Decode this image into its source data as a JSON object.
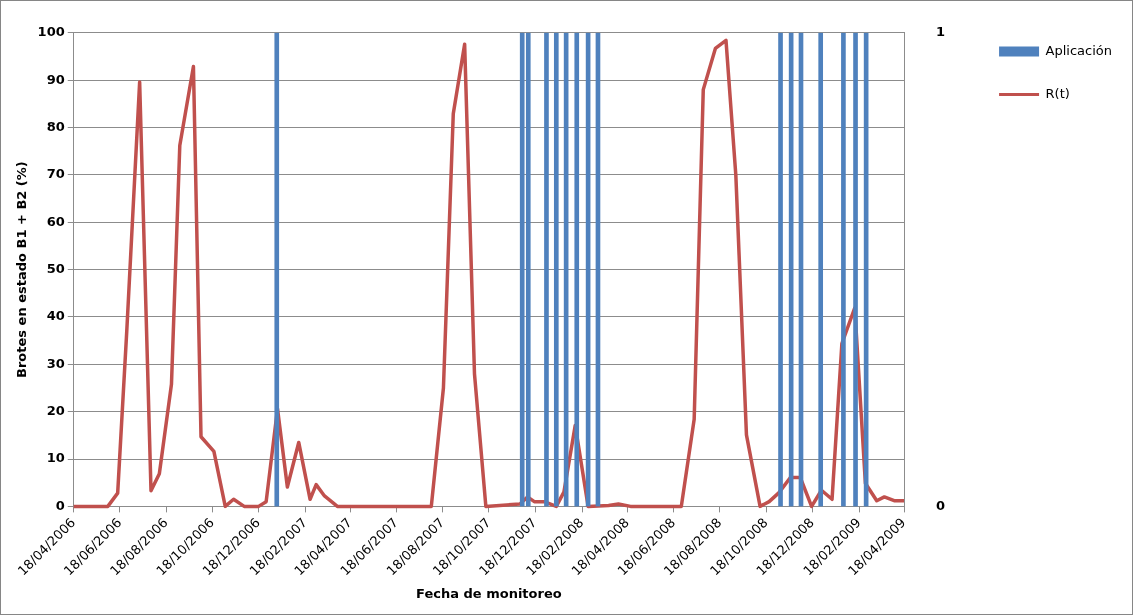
{
  "chart_data": {
    "type": "line",
    "xlabel": "Fecha de monitoreo",
    "ylabel": "Brotes en estado B1 + B2 (%)",
    "grid": "y",
    "legend": "right",
    "marker": "none",
    "xlim": [
      "2006-04-18",
      "2009-04-18"
    ],
    "xticks": [
      {
        "value": "2006-04-18",
        "label": "18/04/2006"
      },
      {
        "value": "2006-06-18",
        "label": "18/06/2006"
      },
      {
        "value": "2006-08-18",
        "label": "18/08/2006"
      },
      {
        "value": "2006-10-18",
        "label": "18/10/2006"
      },
      {
        "value": "2006-12-18",
        "label": "18/12/2006"
      },
      {
        "value": "2007-02-18",
        "label": "18/02/2007"
      },
      {
        "value": "2007-04-18",
        "label": "18/04/2007"
      },
      {
        "value": "2007-06-18",
        "label": "18/06/2007"
      },
      {
        "value": "2007-08-18",
        "label": "18/08/2007"
      },
      {
        "value": "2007-10-18",
        "label": "18/10/2007"
      },
      {
        "value": "2007-12-18",
        "label": "18/12/2007"
      },
      {
        "value": "2008-02-18",
        "label": "18/02/2008"
      },
      {
        "value": "2008-04-18",
        "label": "18/04/2008"
      },
      {
        "value": "2008-06-18",
        "label": "18/06/2008"
      },
      {
        "value": "2008-08-18",
        "label": "18/08/2008"
      },
      {
        "value": "2008-10-18",
        "label": "18/10/2008"
      },
      {
        "value": "2008-12-18",
        "label": "18/12/2008"
      },
      {
        "value": "2009-02-18",
        "label": "18/02/2009"
      },
      {
        "value": "2009-04-18",
        "label": "18/04/2009"
      }
    ],
    "ylim": [
      0,
      100
    ],
    "yticks": [
      0,
      10,
      20,
      30,
      40,
      50,
      60,
      70,
      80,
      90,
      100
    ],
    "y2lim": [
      0,
      1
    ],
    "y2ticks": [
      0,
      1
    ],
    "series": [
      {
        "name": "Aplicación",
        "type": "bar",
        "axis": "y2",
        "color": "#4f81bd",
        "x": [
          "2007-01-11",
          "2007-12-01",
          "2007-12-09",
          "2008-01-02",
          "2008-01-15",
          "2008-01-28",
          "2008-02-11",
          "2008-02-26",
          "2008-03-10",
          "2008-11-06",
          "2008-11-20",
          "2008-12-03",
          "2008-12-29",
          "2009-01-28",
          "2009-02-13",
          "2009-02-27"
        ],
        "values": [
          1,
          1,
          1,
          1,
          1,
          1,
          1,
          1,
          1,
          1,
          1,
          1,
          1,
          1,
          1,
          1
        ]
      },
      {
        "name": "R(t)",
        "color": "#c0504d",
        "x": [
          "2006-04-18",
          "2006-06-02",
          "2006-06-15",
          "2006-06-27",
          "2006-07-14",
          "2006-07-29",
          "2006-08-09",
          "2006-08-25",
          "2006-09-05",
          "2006-09-23",
          "2006-10-03",
          "2006-10-20",
          "2006-11-04",
          "2006-11-15",
          "2006-11-29",
          "2006-12-18",
          "2006-12-28",
          "2007-01-12",
          "2007-01-25",
          "2007-02-09",
          "2007-02-24",
          "2007-03-04",
          "2007-03-15",
          "2007-04-01",
          "2007-08-03",
          "2007-08-19",
          "2007-09-01",
          "2007-09-16",
          "2007-09-29",
          "2007-10-14",
          "2007-11-28",
          "2007-12-08",
          "2007-12-17",
          "2007-12-30",
          "2008-01-15",
          "2008-01-25",
          "2008-02-09",
          "2008-02-26",
          "2008-03-24",
          "2008-04-06",
          "2008-04-22",
          "2008-06-28",
          "2008-07-15",
          "2008-07-27",
          "2008-08-12",
          "2008-08-26",
          "2008-09-08",
          "2008-09-22",
          "2008-10-10",
          "2008-10-22",
          "2008-11-04",
          "2008-11-19",
          "2008-12-02",
          "2008-12-17",
          "2008-12-30",
          "2009-01-13",
          "2009-01-26",
          "2009-02-12",
          "2009-02-26",
          "2009-03-13",
          "2009-03-23",
          "2009-04-05",
          "2009-04-18"
        ],
        "values": [
          0,
          0,
          2.8,
          37,
          89.6,
          3.3,
          6.9,
          25.8,
          76.2,
          92.9,
          14.7,
          11.6,
          0,
          1.5,
          0,
          0,
          1,
          20.6,
          4.1,
          13.5,
          1.5,
          4.6,
          2.2,
          0,
          0,
          25,
          82.9,
          97.6,
          28,
          0,
          0.5,
          2,
          1,
          1,
          0,
          3,
          17.1,
          0,
          0.2,
          0.5,
          0,
          0,
          18.4,
          88,
          96.7,
          98.4,
          69.9,
          15.1,
          0,
          1,
          2.9,
          6.1,
          6.1,
          0,
          3.4,
          1.5,
          34.4,
          41.9,
          4.9,
          1.2,
          2,
          1.2,
          1.2
        ]
      }
    ]
  }
}
